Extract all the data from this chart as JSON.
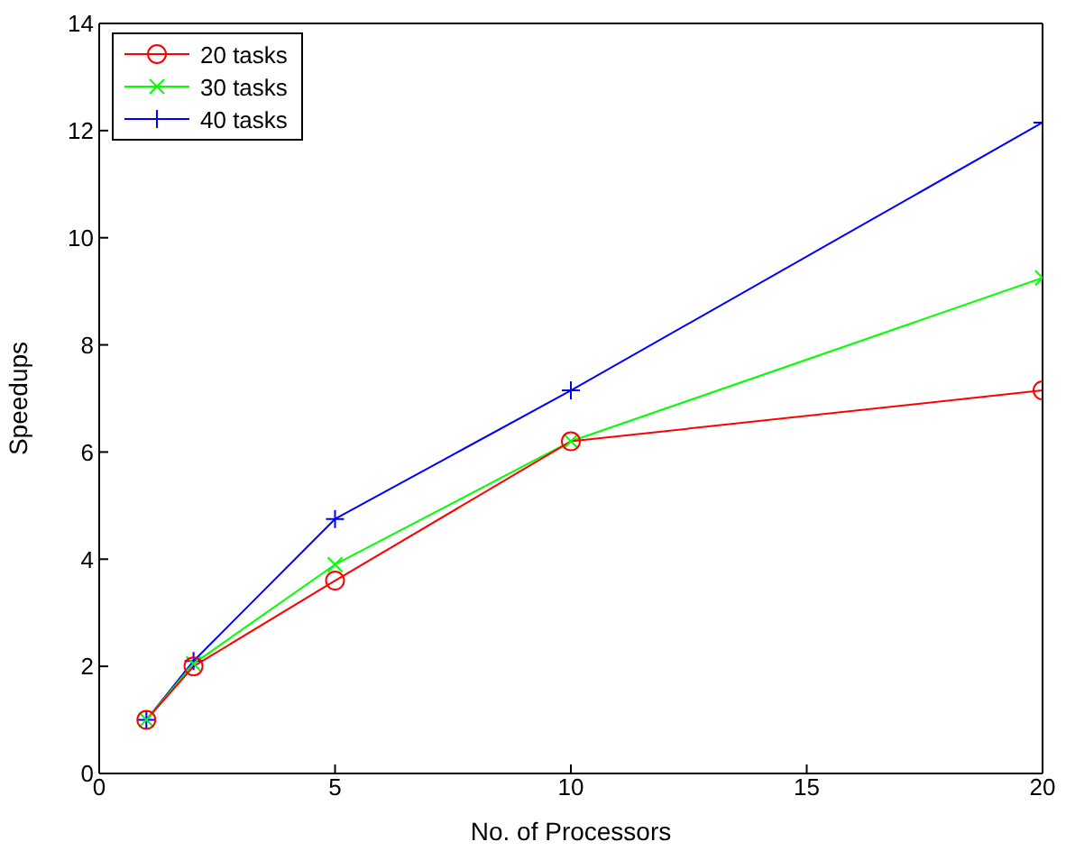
{
  "chart_data": {
    "type": "line",
    "xlabel": "No. of Processors",
    "ylabel": "Speedups",
    "x": [
      1,
      2,
      5,
      10,
      20
    ],
    "series": [
      {
        "name": "20 tasks",
        "color": "#ff0000",
        "marker": "circle",
        "values": [
          1,
          2,
          3.6,
          6.2,
          7.15
        ]
      },
      {
        "name": "30 tasks",
        "color": "#00ff00",
        "marker": "x",
        "values": [
          1,
          2.05,
          3.9,
          6.2,
          9.25
        ]
      },
      {
        "name": "40 tasks",
        "color": "#0000ff",
        "marker": "cross",
        "values": [
          1,
          2.1,
          4.75,
          7.15,
          12.15
        ]
      }
    ],
    "xlim": [
      0,
      20
    ],
    "xticks": [
      0,
      5,
      10,
      15,
      20
    ],
    "ylim": [
      0,
      14
    ],
    "yticks": [
      0,
      2,
      4,
      6,
      8,
      10,
      12,
      14
    ],
    "grid": false,
    "legend": "top left",
    "line_style": "solid"
  }
}
